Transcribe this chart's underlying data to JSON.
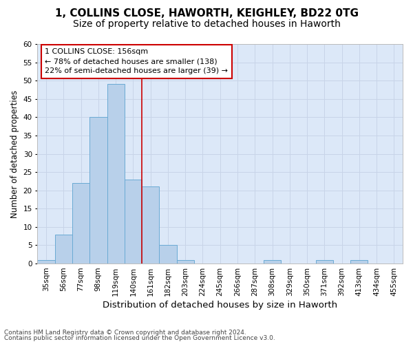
{
  "title": "1, COLLINS CLOSE, HAWORTH, KEIGHLEY, BD22 0TG",
  "subtitle": "Size of property relative to detached houses in Haworth",
  "xlabel": "Distribution of detached houses by size in Haworth",
  "ylabel": "Number of detached properties",
  "bins": [
    "35sqm",
    "56sqm",
    "77sqm",
    "98sqm",
    "119sqm",
    "140sqm",
    "161sqm",
    "182sqm",
    "203sqm",
    "224sqm",
    "245sqm",
    "266sqm",
    "287sqm",
    "308sqm",
    "329sqm",
    "350sqm",
    "371sqm",
    "392sqm",
    "413sqm",
    "434sqm",
    "455sqm"
  ],
  "values": [
    1,
    8,
    22,
    40,
    49,
    23,
    21,
    5,
    1,
    0,
    0,
    0,
    0,
    1,
    0,
    0,
    1,
    0,
    1,
    0,
    0
  ],
  "bar_color": "#b8d0ea",
  "bar_edgecolor": "#6aaad4",
  "bar_linewidth": 0.7,
  "annotation_text_line1": "1 COLLINS CLOSE: 156sqm",
  "annotation_text_line2": "← 78% of detached houses are smaller (138)",
  "annotation_text_line3": "22% of semi-detached houses are larger (39) →",
  "annotation_box_facecolor": "#ffffff",
  "annotation_box_edgecolor": "#cc0000",
  "vline_color": "#cc0000",
  "vline_linewidth": 1.2,
  "vline_x": 5.5,
  "ylim": [
    0,
    60
  ],
  "yticks": [
    0,
    5,
    10,
    15,
    20,
    25,
    30,
    35,
    40,
    45,
    50,
    55,
    60
  ],
  "grid_color": "#c8d4e8",
  "plot_bg_color": "#dce8f8",
  "title_fontsize": 11,
  "subtitle_fontsize": 10,
  "xlabel_fontsize": 9.5,
  "ylabel_fontsize": 8.5,
  "tick_fontsize": 7.5,
  "annotation_fontsize": 8,
  "footer_fontsize": 6.5,
  "footer_line1": "Contains HM Land Registry data © Crown copyright and database right 2024.",
  "footer_line2": "Contains public sector information licensed under the Open Government Licence v3.0."
}
